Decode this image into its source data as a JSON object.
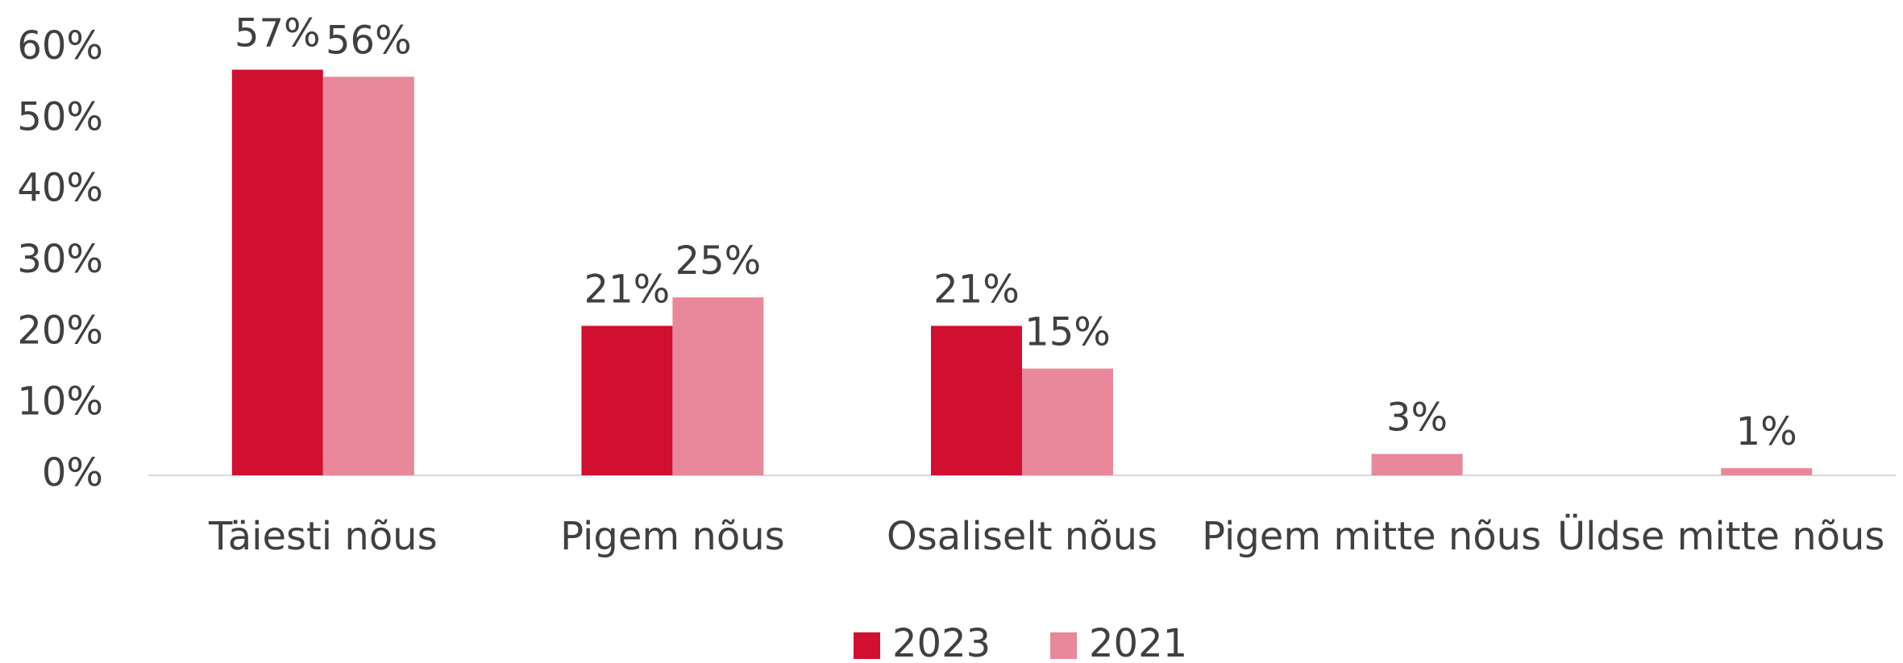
{
  "chart_data": {
    "type": "bar",
    "categories": [
      "Täiesti nõus",
      "Pigem nõus",
      "Osaliselt nõus",
      "Pigem mitte nõus",
      "Üldse mitte nõus"
    ],
    "series": [
      {
        "name": "2023",
        "color": "#d10f31",
        "values": [
          57,
          21,
          21,
          null,
          null
        ],
        "value_labels": [
          "57%",
          "21%",
          "21%",
          null,
          null
        ]
      },
      {
        "name": "2021",
        "color": "#e8889a",
        "values": [
          56,
          25,
          15,
          3,
          1
        ],
        "value_labels": [
          "56%",
          "25%",
          "15%",
          "3%",
          "1%"
        ]
      }
    ],
    "ylim": [
      0,
      60
    ],
    "yticks": [
      {
        "value": 0,
        "label": "0%"
      },
      {
        "value": 10,
        "label": "10%"
      },
      {
        "value": 20,
        "label": "20%"
      },
      {
        "value": 30,
        "label": "30%"
      },
      {
        "value": 40,
        "label": "40%"
      },
      {
        "value": 50,
        "label": "50%"
      },
      {
        "value": 60,
        "label": "60%"
      }
    ],
    "grid": false,
    "legend": "bottom"
  }
}
